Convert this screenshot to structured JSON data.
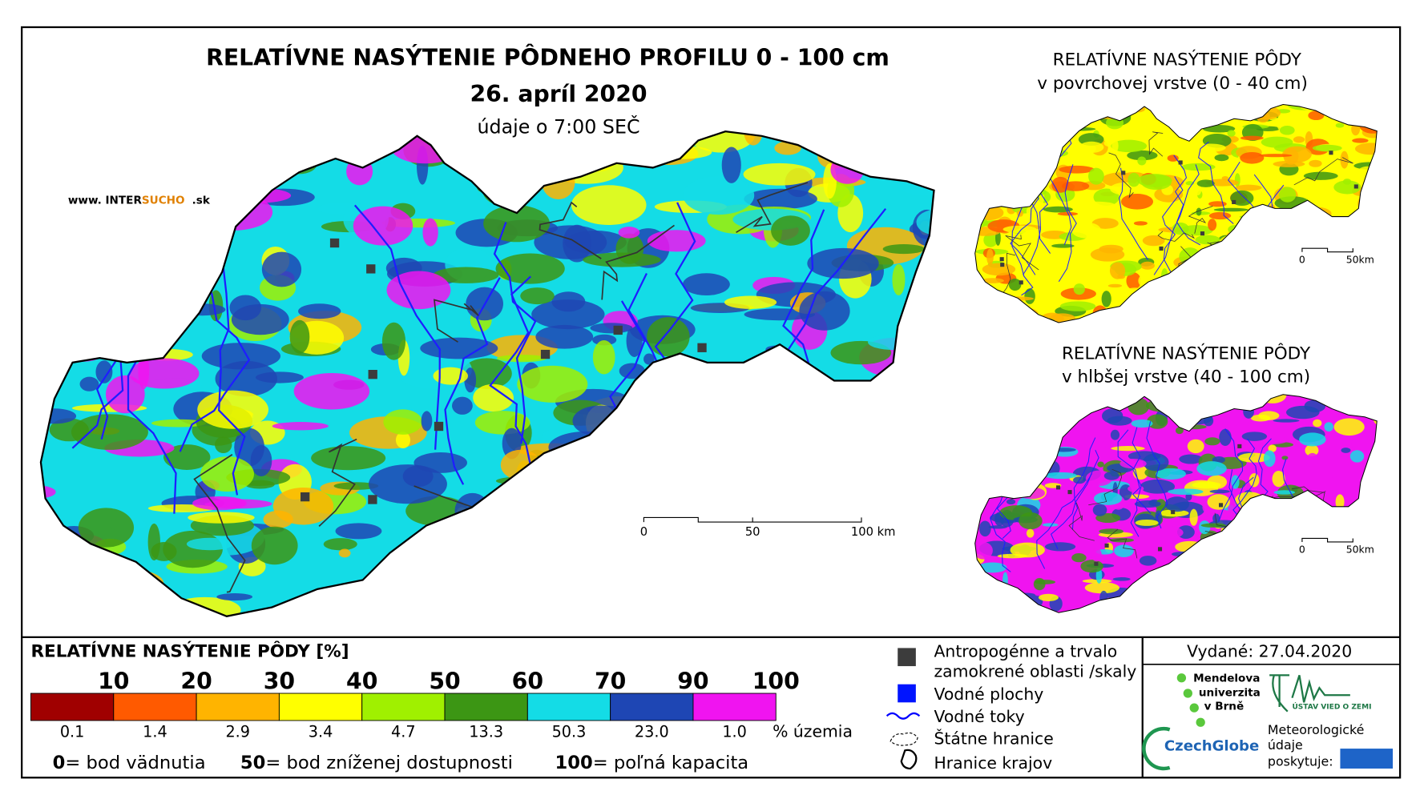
{
  "header": {
    "title": "RELATÍVNE NASÝTENIE PÔDNEHO PROFILU 0 - 100 cm",
    "date": "26. apríl 2020",
    "time_note": "údaje o 7:00 SEČ",
    "site_prefix": "www. INTER",
    "site_brand": "SUCHO",
    "site_suffix": ".sk"
  },
  "main_scale": [
    "0",
    "50",
    "100 km"
  ],
  "insets": [
    {
      "title_line1": "RELATÍVNE NASÝTENIE PÔDY",
      "title_line2": "v povrchovej vrstve (0 - 40 cm)",
      "scale": [
        "0",
        "50km"
      ]
    },
    {
      "title_line1": "RELATÍVNE NASÝTENIE PÔDY",
      "title_line2": "v hlbšej vrstve (40 - 100 cm)",
      "scale": [
        "0",
        "50km"
      ]
    }
  ],
  "legend": {
    "title": "RELATÍVNE NASÝTENIE PÔDY [%]",
    "breaks": [
      10,
      20,
      30,
      40,
      50,
      60,
      70,
      90,
      100
    ],
    "classes": [
      {
        "color": "#a00000",
        "share": "0.1"
      },
      {
        "color": "#ff5a00",
        "share": "1.4"
      },
      {
        "color": "#ffb400",
        "share": "2.9"
      },
      {
        "color": "#ffff00",
        "share": "3.4"
      },
      {
        "color": "#a0f000",
        "share": "4.7"
      },
      {
        "color": "#3c9614",
        "share": "13.3"
      },
      {
        "color": "#14dce6",
        "share": "50.3"
      },
      {
        "color": "#1e46b4",
        "share": "23.0"
      },
      {
        "color": "#f014f0",
        "share": "1.0"
      }
    ],
    "share_unit": "% územia",
    "notes": [
      {
        "value": "0",
        "text": "= bod vädnutia"
      },
      {
        "value": "50",
        "text": "= bod zníženej dostupnosti"
      },
      {
        "value": "100",
        "text": "= poľná kapacita"
      }
    ]
  },
  "symbols": [
    "Antropogénne a trvalo",
    "zamokrené oblasti /skaly",
    "Vodné plochy",
    "Vodné toky",
    "Štátne hranice",
    "Hranice krajov"
  ],
  "issued": "Vydané: 27.04.2020",
  "credits": {
    "mendel": [
      "Mendelova",
      "univerzita",
      "v Brně"
    ],
    "czechglobe": "CzechGlobe",
    "ustav": "ÚSTAV VIED O ZEMI",
    "meteo": [
      "Meteorologické",
      "údaje",
      "poskytuje:"
    ]
  }
}
